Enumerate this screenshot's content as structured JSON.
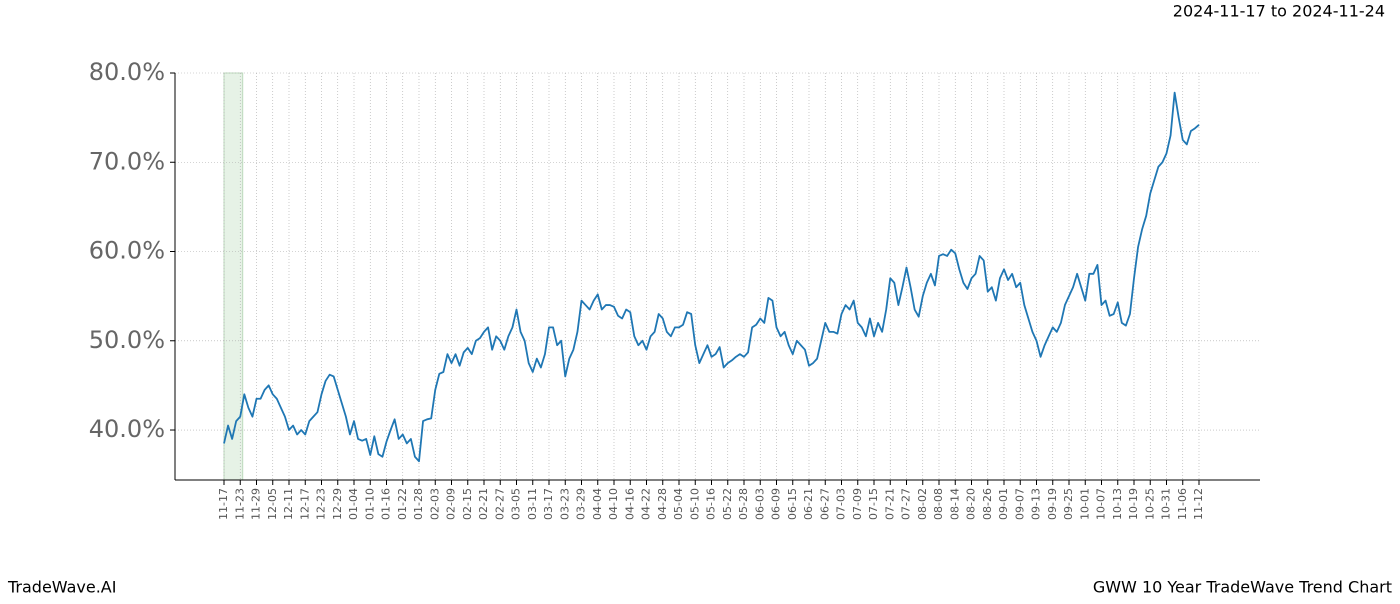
{
  "chart_data": {
    "type": "line",
    "title": "GWW 10 Year TradeWave Trend Chart",
    "subtitle": "2024-11-17 to 2024-11-24",
    "watermark": "TradeWave.AI",
    "categories": [
      "11-17",
      null,
      null,
      null,
      "11-23",
      null,
      null,
      null,
      "11-29",
      null,
      null,
      null,
      "12-05",
      null,
      null,
      null,
      "12-11",
      null,
      null,
      null,
      "12-17",
      null,
      null,
      null,
      "12-23",
      null,
      null,
      null,
      "12-29",
      null,
      null,
      null,
      "01-04",
      null,
      null,
      null,
      "01-10",
      null,
      null,
      null,
      "01-16",
      null,
      null,
      null,
      "01-22",
      null,
      null,
      null,
      "01-28",
      null,
      null,
      null,
      "02-03",
      null,
      null,
      null,
      "02-09",
      null,
      null,
      null,
      "02-15",
      null,
      null,
      null,
      "02-21",
      null,
      null,
      null,
      "02-27",
      null,
      null,
      null,
      "03-05",
      null,
      null,
      null,
      "03-11",
      null,
      null,
      null,
      "03-17",
      null,
      null,
      null,
      "03-23",
      null,
      null,
      null,
      "03-29",
      null,
      null,
      null,
      "04-04",
      null,
      null,
      null,
      "04-10",
      null,
      null,
      null,
      "04-16",
      null,
      null,
      null,
      "04-22",
      null,
      null,
      null,
      "04-28",
      null,
      null,
      null,
      "05-04",
      null,
      null,
      null,
      "05-10",
      null,
      null,
      null,
      "05-16",
      null,
      null,
      null,
      "05-22",
      null,
      null,
      null,
      "05-28",
      null,
      null,
      null,
      "06-03",
      null,
      null,
      null,
      "06-09",
      null,
      null,
      null,
      "06-15",
      null,
      null,
      null,
      "06-21",
      null,
      null,
      null,
      "06-27",
      null,
      null,
      null,
      "07-03",
      null,
      null,
      null,
      "07-09",
      null,
      null,
      null,
      "07-15",
      null,
      null,
      null,
      "07-21",
      null,
      null,
      null,
      "07-27",
      null,
      null,
      null,
      "08-02",
      null,
      null,
      null,
      "08-08",
      null,
      null,
      null,
      "08-14",
      null,
      null,
      null,
      "08-20",
      null,
      null,
      null,
      "08-26",
      null,
      null,
      null,
      "09-01",
      null,
      null,
      null,
      "09-07",
      null,
      null,
      null,
      "09-13",
      null,
      null,
      null,
      "09-19",
      null,
      null,
      null,
      "09-25",
      null,
      null,
      null,
      "10-01",
      null,
      null,
      null,
      "10-07",
      null,
      null,
      null,
      "10-13",
      null,
      null,
      null,
      "10-19",
      null,
      null,
      null,
      "10-25",
      null,
      null,
      null,
      "10-31",
      null,
      null,
      null,
      "11-06",
      null,
      null,
      null,
      "11-12"
    ],
    "series": [
      {
        "color": "#1f77b4",
        "values": [
          38.5,
          40.5,
          39,
          41,
          41.5,
          44,
          42.5,
          41.5,
          43.5,
          43.5,
          44.5,
          45,
          44,
          43.5,
          42.5,
          41.5,
          40,
          40.5,
          39.5,
          40,
          39.5,
          41,
          41.5,
          42,
          44,
          45.5,
          46.2,
          46,
          44.5,
          43,
          41.5,
          39.5,
          41,
          39,
          38.8,
          39,
          37.2,
          39.3,
          37.3,
          37,
          38.7,
          40,
          41.2,
          39,
          39.5,
          38.5,
          39,
          37,
          36.5,
          41,
          41.2,
          41.3,
          44.5,
          46.3,
          46.5,
          48.5,
          47.5,
          48.5,
          47.2,
          48.7,
          49.2,
          48.5,
          50,
          50.3,
          51,
          51.5,
          49,
          50.5,
          50,
          49,
          50.5,
          51.5,
          53.5,
          51,
          50,
          47.5,
          46.5,
          48,
          47,
          48.5,
          51.5,
          51.5,
          49.5,
          50,
          46,
          48,
          49,
          51,
          54.5,
          54,
          53.5,
          54.5,
          55.2,
          53.5,
          54,
          54,
          53.8,
          52.8,
          52.5,
          53.5,
          53.2,
          50.5,
          49.5,
          50,
          49,
          50.5,
          51,
          53,
          52.5,
          51,
          50.5,
          51.5,
          51.5,
          51.8,
          53.2,
          53,
          49.5,
          47.5,
          48.5,
          49.5,
          48.2,
          48.5,
          49.3,
          47,
          47.5,
          47.8,
          48.2,
          48.5,
          48.2,
          48.7,
          51.5,
          51.8,
          52.5,
          52,
          54.8,
          54.5,
          51.5,
          50.5,
          51,
          49.5,
          48.5,
          50,
          49.5,
          49,
          47.2,
          47.5,
          48,
          50,
          52,
          51,
          51,
          50.8,
          53,
          54,
          53.5,
          54.5,
          52,
          51.5,
          50.5,
          52.5,
          50.5,
          52,
          51,
          53.5,
          57,
          56.5,
          54,
          56,
          58.2,
          56,
          53.5,
          52.7,
          55,
          56.5,
          57.5,
          56.2,
          59.5,
          59.7,
          59.5,
          60.2,
          59.8,
          58,
          56.5,
          55.8,
          57,
          57.5,
          59.5,
          59,
          55.5,
          56,
          54.5,
          57,
          58,
          56.8,
          57.5,
          56,
          56.5,
          54,
          52.5,
          51,
          50,
          48.2,
          49.5,
          50.5,
          51.5,
          51,
          52,
          54,
          55,
          56,
          57.5,
          56,
          54.5,
          57.5,
          57.5,
          58.5,
          54,
          54.5,
          52.8,
          53,
          54.3,
          52,
          51.7,
          53,
          57,
          60.5,
          62.5,
          64,
          66.5,
          68,
          69.5,
          70,
          71,
          73,
          77.8,
          75,
          72.5,
          72,
          73.5,
          73.8,
          74.2
        ]
      }
    ],
    "ylim": [
      34.4,
      80
    ],
    "yticks": [
      {
        "value": 40,
        "label": "40.0%"
      },
      {
        "value": 50,
        "label": "50.0%"
      },
      {
        "value": 60,
        "label": "60.0%"
      },
      {
        "value": 70,
        "label": "70.0%"
      },
      {
        "value": 80,
        "label": "80.0%"
      }
    ],
    "grid": true
  }
}
